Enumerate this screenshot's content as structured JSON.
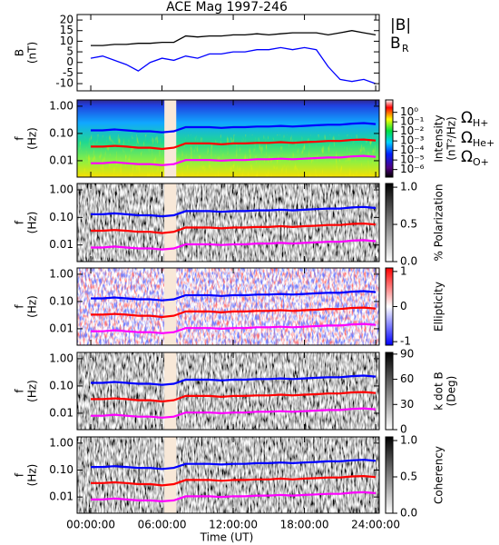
{
  "chart_data": [
    {
      "type": "line",
      "title": "ACE Mag 1997-246",
      "ylabel": [
        "B",
        "(nT)"
      ],
      "ylim": [
        -13.4,
        22.6
      ],
      "yticks": [
        -10,
        -5,
        0,
        5,
        10,
        15,
        20
      ],
      "x": [
        0,
        1,
        2,
        3,
        4,
        5,
        6,
        7,
        8,
        9,
        10,
        11,
        12,
        13,
        14,
        15,
        16,
        17,
        18,
        19,
        20,
        21,
        22,
        23,
        24
      ],
      "series": [
        {
          "name": "|B|",
          "color": "#000000",
          "values": [
            8,
            8,
            8.5,
            8.5,
            9,
            9,
            9.5,
            9.5,
            12.5,
            12,
            12.5,
            12.5,
            13,
            13,
            13.5,
            13,
            13.5,
            14,
            14,
            14,
            13,
            14,
            15,
            14,
            13
          ]
        },
        {
          "name": "B",
          "name_sub": "R",
          "color": "#0000ff",
          "values": [
            2,
            3,
            1,
            -1,
            -4,
            0,
            2,
            1,
            3,
            2,
            4,
            4,
            5,
            5,
            6,
            6,
            7,
            6,
            7,
            6,
            -2,
            -8,
            -9,
            -8,
            -10
          ]
        }
      ]
    },
    {
      "type": "spectrogram",
      "ylabel": [
        "f",
        "(Hz)"
      ],
      "log_y": true,
      "ylim": [
        0.0025,
        1.7
      ],
      "yticks": [
        {
          "value": 1,
          "label": "1.00"
        },
        {
          "value": 0.1,
          "label": "0.10"
        },
        {
          "value": 0.01,
          "label": "0.01"
        }
      ],
      "colormap": "rainbow",
      "clabel": [
        "Intensity",
        "(nT²/Hz)"
      ],
      "log_c": true,
      "clim": [
        1.6e-07,
        20
      ],
      "cticks": [
        {
          "value": 1,
          "label": "10⁰"
        },
        {
          "value": 0.1,
          "label": "10⁻¹"
        },
        {
          "value": 0.01,
          "label": "10⁻²"
        },
        {
          "value": 0.001,
          "label": "10⁻³"
        },
        {
          "value": 0.0001,
          "label": "10⁻⁴"
        },
        {
          "value": 1e-05,
          "label": "10⁻⁵"
        },
        {
          "value": 1e-06,
          "label": "10⁻⁶"
        }
      ],
      "gap": [
        6.2,
        7.2
      ],
      "x": [
        0,
        1,
        2,
        3,
        4,
        5,
        6,
        7,
        8,
        9,
        10,
        11,
        12,
        13,
        14,
        15,
        16,
        17,
        18,
        19,
        20,
        21,
        22,
        23,
        24
      ],
      "series": [
        {
          "name": "Ω",
          "name_sub": "H+",
          "color": "#0000ff",
          "values": [
            0.13,
            0.13,
            0.14,
            0.13,
            0.12,
            0.12,
            0.11,
            0.12,
            0.17,
            0.17,
            0.17,
            0.16,
            0.17,
            0.17,
            0.18,
            0.18,
            0.19,
            0.18,
            0.19,
            0.2,
            0.21,
            0.21,
            0.23,
            0.24,
            0.22
          ]
        },
        {
          "name": "Ω",
          "name_sub": "He+",
          "color": "#ff0000",
          "values": [
            0.033,
            0.033,
            0.035,
            0.033,
            0.03,
            0.03,
            0.027,
            0.03,
            0.043,
            0.043,
            0.043,
            0.04,
            0.043,
            0.043,
            0.045,
            0.045,
            0.048,
            0.045,
            0.048,
            0.05,
            0.053,
            0.053,
            0.058,
            0.06,
            0.055
          ]
        },
        {
          "name": "Ω",
          "name_sub": "O+",
          "color": "#ff00ff",
          "values": [
            0.0081,
            0.0081,
            0.0088,
            0.0081,
            0.0075,
            0.0075,
            0.0069,
            0.0075,
            0.0106,
            0.0106,
            0.0106,
            0.01,
            0.0106,
            0.0106,
            0.0113,
            0.0113,
            0.0119,
            0.0113,
            0.0119,
            0.0125,
            0.0131,
            0.0131,
            0.0144,
            0.015,
            0.0138
          ]
        }
      ]
    },
    {
      "type": "spectrogram",
      "ylabel": [
        "f",
        "(Hz)"
      ],
      "log_y": true,
      "ylim": [
        0.0025,
        1.7
      ],
      "yticks": [
        {
          "value": 1,
          "label": "1.00"
        },
        {
          "value": 0.1,
          "label": "0.10"
        },
        {
          "value": 0.01,
          "label": "0.01"
        }
      ],
      "colormap": "gray",
      "clabel": [
        "% Polarization"
      ],
      "clim": [
        0,
        1.05
      ],
      "cticks": [
        {
          "value": 0,
          "label": "0.0"
        },
        {
          "value": 0.5,
          "label": "0.5"
        },
        {
          "value": 1,
          "label": "1.0"
        }
      ]
    },
    {
      "type": "spectrogram",
      "ylabel": [
        "f",
        "(Hz)"
      ],
      "log_y": true,
      "ylim": [
        0.0025,
        1.7
      ],
      "yticks": [
        {
          "value": 1,
          "label": "1.00"
        },
        {
          "value": 0.1,
          "label": "0.10"
        },
        {
          "value": 0.01,
          "label": "0.01"
        }
      ],
      "colormap": "bwr",
      "clabel": [
        "Ellipticity"
      ],
      "clim": [
        -1.1,
        1.1
      ],
      "cticks": [
        -1,
        0,
        1
      ]
    },
    {
      "type": "spectrogram",
      "ylabel": [
        "f",
        "(Hz)"
      ],
      "log_y": true,
      "ylim": [
        0.0025,
        1.7
      ],
      "yticks": [
        {
          "value": 1,
          "label": "1.00"
        },
        {
          "value": 0.1,
          "label": "0.10"
        },
        {
          "value": 0.01,
          "label": "0.01"
        }
      ],
      "colormap": "gray",
      "clabel": [
        "k dot B",
        "(Deg)"
      ],
      "clim": [
        0,
        92
      ],
      "cticks": [
        0,
        30,
        60,
        90
      ]
    },
    {
      "type": "spectrogram",
      "ylabel": [
        "f",
        "(Hz)"
      ],
      "log_y": true,
      "ylim": [
        0.0025,
        1.7
      ],
      "yticks": [
        {
          "value": 1,
          "label": "1.00"
        },
        {
          "value": 0.1,
          "label": "0.10"
        },
        {
          "value": 0.01,
          "label": "0.01"
        }
      ],
      "colormap": "gray",
      "clabel": [
        "Coherency"
      ],
      "clim": [
        0,
        1.05
      ],
      "cticks": [
        {
          "value": 0,
          "label": "0.0"
        },
        {
          "value": 0.5,
          "label": "0.5"
        },
        {
          "value": 1,
          "label": "1.0"
        }
      ],
      "xlabel": "Time (UT)",
      "xlim": [
        -1.15,
        24.3
      ],
      "xticks": [
        {
          "value": 0,
          "label": "00:00:00"
        },
        {
          "value": 6,
          "label": "06:00:00"
        },
        {
          "value": 12,
          "label": "12:00:00"
        },
        {
          "value": 18,
          "label": "18:00:00"
        },
        {
          "value": 24,
          "label": "24:00:00"
        }
      ]
    }
  ]
}
